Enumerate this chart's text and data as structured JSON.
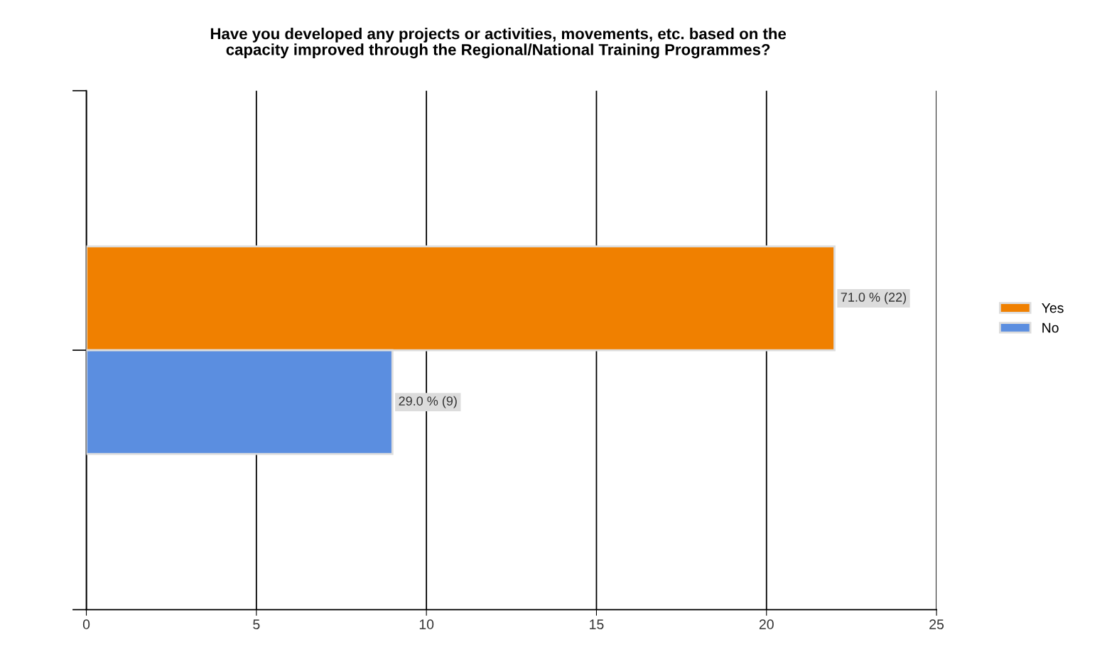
{
  "chart_data": {
    "type": "bar",
    "orientation": "horizontal",
    "title": "Have you developed any projects or activities, movements, etc. based on the\ncapacity improved through the Regional/National Training Programmes?",
    "categories": [
      null
    ],
    "series": [
      {
        "name": "Yes",
        "color": "#f08000",
        "values": [
          22
        ],
        "value_labels": [
          "71.0 % (22)"
        ]
      },
      {
        "name": "No",
        "color": "#5b8ee0",
        "values": [
          9
        ],
        "value_labels": [
          "29.0 % (9)"
        ]
      }
    ],
    "xlim": [
      0,
      25
    ],
    "xticks": [
      0,
      5,
      10,
      15,
      20,
      25
    ],
    "grid": "x",
    "legend": "right"
  }
}
